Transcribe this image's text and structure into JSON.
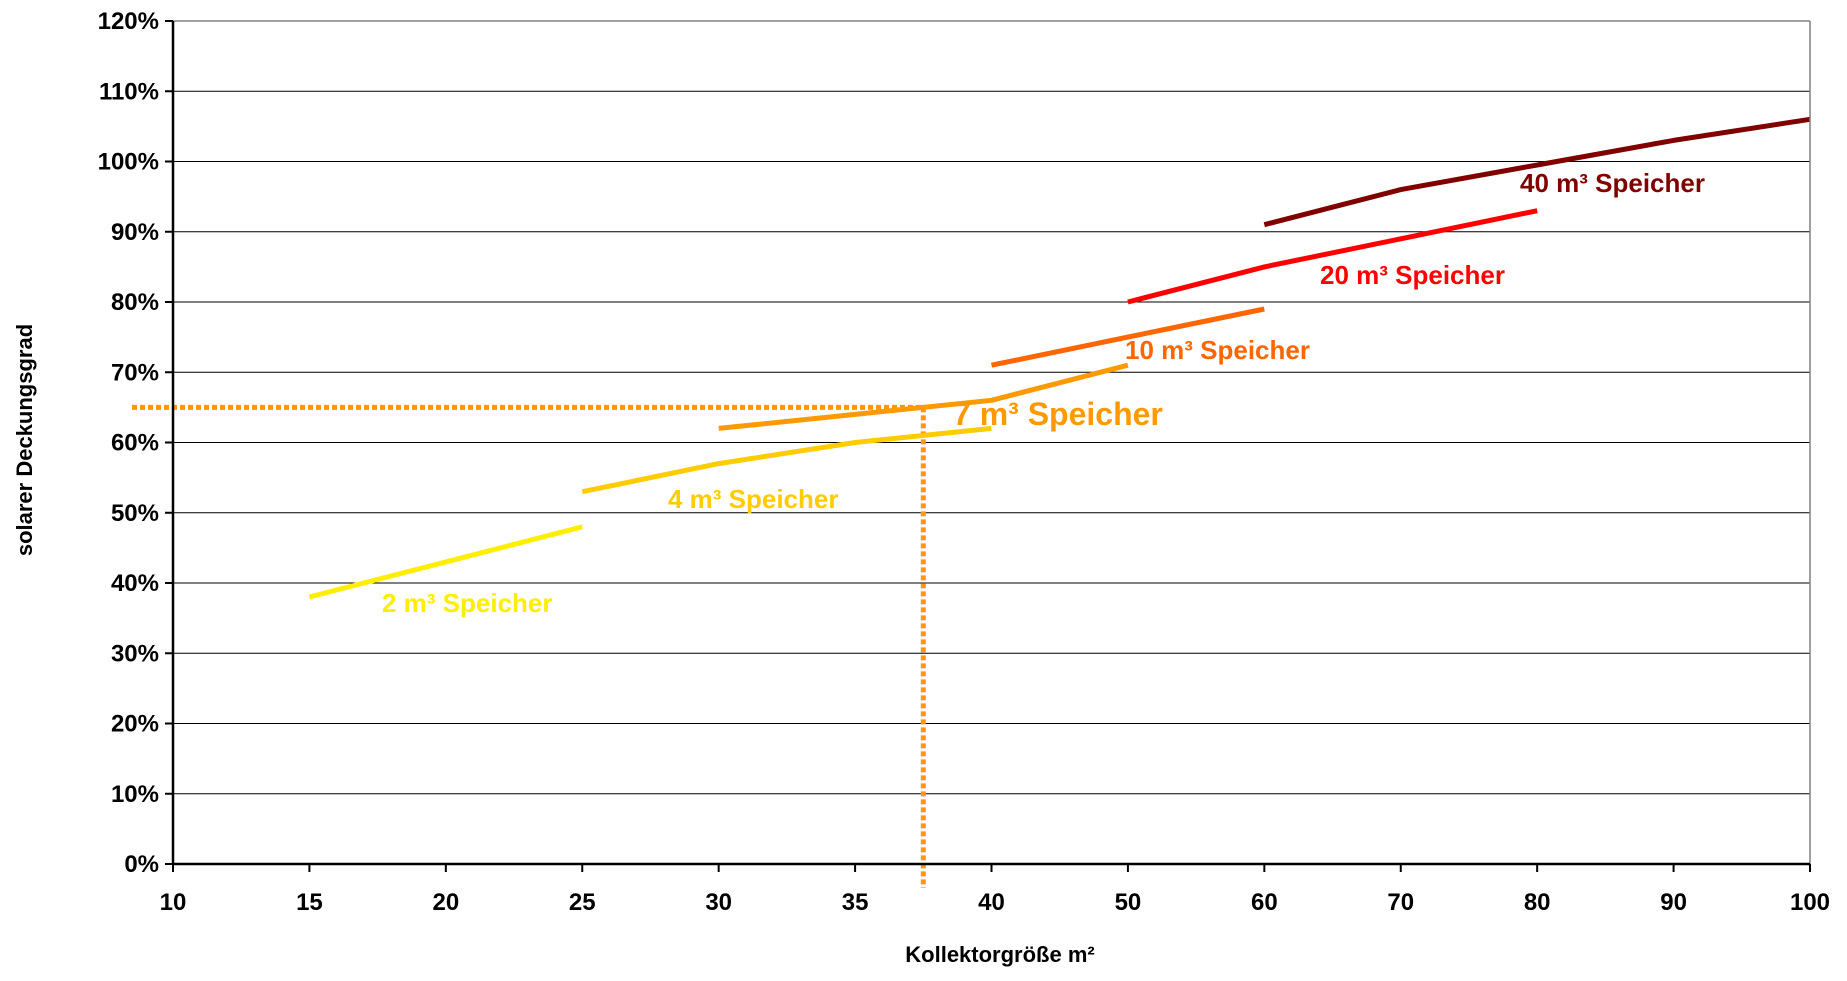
{
  "chart_data": {
    "type": "line",
    "xlabel": "Kollektorgröße m²",
    "ylabel": "solarer Deckungsgrad",
    "xticks": [
      "10",
      "15",
      "20",
      "25",
      "30",
      "35",
      "40",
      "50",
      "60",
      "70",
      "80",
      "90",
      "100"
    ],
    "yticks": [
      "0%",
      "10%",
      "20%",
      "30%",
      "40%",
      "50%",
      "60%",
      "70%",
      "80%",
      "90%",
      "100%",
      "110%",
      "120%"
    ],
    "ylim": [
      0,
      1.2
    ],
    "grid": "horizontal",
    "legend": "none",
    "series": [
      {
        "name": "2 m³ Speicher",
        "color": "#FFEE00",
        "label_size": "normal",
        "points": [
          [
            15,
            0.38
          ],
          [
            20,
            0.43
          ],
          [
            25,
            0.48
          ]
        ]
      },
      {
        "name": "4 m³ Speicher",
        "color": "#FFCC00",
        "label_size": "normal",
        "points": [
          [
            25,
            0.53
          ],
          [
            30,
            0.57
          ],
          [
            35,
            0.6
          ],
          [
            40,
            0.62
          ]
        ]
      },
      {
        "name": "7 m³ Speicher",
        "color": "#FF9900",
        "label_size": "large",
        "points": [
          [
            30,
            0.62
          ],
          [
            35,
            0.64
          ],
          [
            40,
            0.66
          ],
          [
            50,
            0.71
          ]
        ]
      },
      {
        "name": "10 m³ Speicher",
        "color": "#FF6600",
        "label_size": "normal",
        "points": [
          [
            40,
            0.71
          ],
          [
            50,
            0.75
          ],
          [
            60,
            0.79
          ]
        ]
      },
      {
        "name": "20 m³ Speicher",
        "color": "#FF0000",
        "label_size": "normal",
        "points": [
          [
            50,
            0.8
          ],
          [
            60,
            0.85
          ],
          [
            70,
            0.89
          ],
          [
            80,
            0.93
          ]
        ]
      },
      {
        "name": "40 m³ Speicher",
        "color": "#800000",
        "label_size": "normal",
        "points": [
          [
            60,
            0.91
          ],
          [
            70,
            0.96
          ],
          [
            80,
            0.995
          ],
          [
            90,
            1.03
          ],
          [
            100,
            1.06
          ]
        ]
      }
    ],
    "reference_lines": {
      "color": "#FF9900",
      "style": "dotted",
      "x_value": 37.5,
      "y_value": 0.65
    }
  }
}
